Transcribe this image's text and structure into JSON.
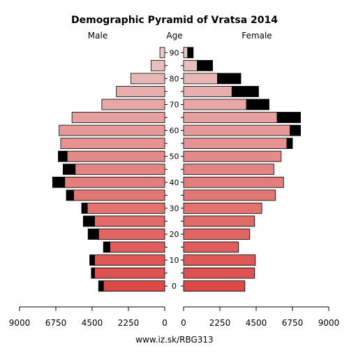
{
  "chart_data": {
    "type": "bar",
    "title": "Demographic Pyramid of Vratsa 2014",
    "male_label": "Male",
    "age_label": "Age",
    "female_label": "Female",
    "footer": "www.iz.sk/RBG313",
    "age_ticks": [
      "90",
      "80",
      "70",
      "60",
      "50",
      "40",
      "30",
      "20",
      "10",
      "0"
    ],
    "x_ticks_left": [
      "9000",
      "6750",
      "4500",
      "2250",
      "0"
    ],
    "x_ticks_right": [
      "0",
      "2250",
      "4500",
      "6750",
      "9000"
    ],
    "xlim": [
      0,
      9000
    ],
    "categories": [
      "0-4",
      "5-9",
      "10-14",
      "15-19",
      "20-24",
      "25-29",
      "30-34",
      "35-39",
      "40-44",
      "45-49",
      "50-54",
      "55-59",
      "60-64",
      "65-69",
      "70-74",
      "75-79",
      "80-84",
      "85-89",
      "90+"
    ],
    "male": {
      "base": [
        3800,
        4350,
        4350,
        3400,
        4100,
        4350,
        4800,
        5650,
        6200,
        5550,
        6050,
        6450,
        6550,
        5750,
        3900,
        3000,
        2100,
        850,
        300
      ],
      "excess": [
        300,
        200,
        300,
        400,
        650,
        700,
        350,
        450,
        750,
        750,
        550,
        0,
        0,
        0,
        0,
        0,
        0,
        0,
        0
      ]
    },
    "female": {
      "base": [
        3800,
        4400,
        4450,
        3400,
        4100,
        4400,
        4850,
        5700,
        6200,
        5600,
        6050,
        6400,
        6600,
        5800,
        3900,
        3000,
        2100,
        850,
        250
      ],
      "excess": [
        0,
        0,
        0,
        0,
        0,
        0,
        0,
        0,
        0,
        0,
        0,
        350,
        650,
        1450,
        1400,
        1650,
        1450,
        950,
        350
      ]
    },
    "colors": {
      "excess": "#000000",
      "row_colors": [
        "#dc4a48",
        "#dd5250",
        "#de5856",
        "#df5e5c",
        "#e06563",
        "#e16b69",
        "#e27270",
        "#e27876",
        "#e37e7c",
        "#e38583",
        "#e48b8a",
        "#e59291",
        "#e59998",
        "#e6a09f",
        "#e7a7a6",
        "#e8aeae",
        "#e9b6b6",
        "#eabebe",
        "#ecc6c6"
      ]
    }
  }
}
